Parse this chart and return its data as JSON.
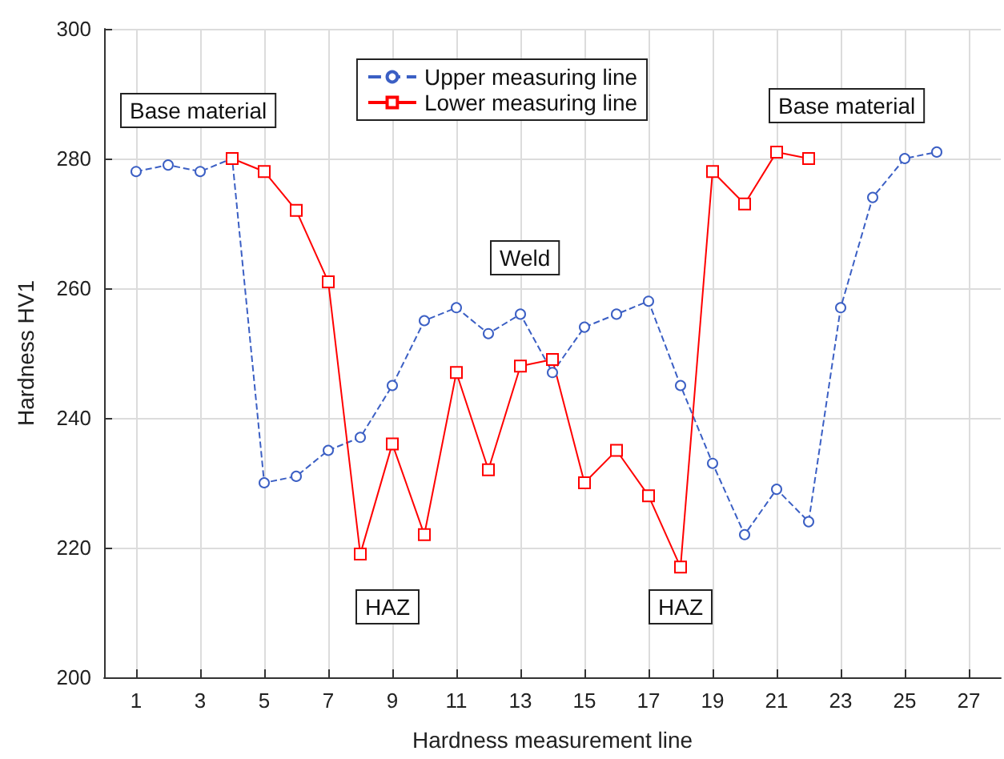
{
  "chart_data": {
    "type": "line",
    "xlabel": "Hardness measurement line",
    "ylabel": "Hardness HV1",
    "xlim": [
      0,
      28
    ],
    "xticks": [
      1,
      3,
      5,
      7,
      9,
      11,
      13,
      15,
      17,
      19,
      21,
      23,
      25,
      27
    ],
    "ylim": [
      200,
      300
    ],
    "yticks": [
      200,
      220,
      240,
      260,
      280,
      300
    ],
    "grid": true,
    "legend": "top",
    "annotations": [
      "Base material",
      "Base material",
      "Weld",
      "HAZ",
      "HAZ"
    ],
    "series": [
      {
        "name": "Upper measuring line",
        "color": "#3b5fc4",
        "marker": "circle",
        "line_style": "dashed",
        "x": [
          1,
          2,
          3,
          4,
          5,
          6,
          7,
          8,
          9,
          10,
          11,
          12,
          13,
          14,
          15,
          16,
          17,
          18,
          19,
          20,
          21,
          22,
          23,
          24,
          25,
          26
        ],
        "values": [
          278,
          279,
          278,
          280,
          230,
          231,
          235,
          237,
          245,
          255,
          257,
          253,
          256,
          247,
          254,
          256,
          258,
          245,
          233,
          222,
          229,
          224,
          257,
          274,
          280,
          281
        ]
      },
      {
        "name": "Lower measuring line",
        "color": "#ff0000",
        "marker": "square",
        "line_style": "solid",
        "x": [
          4,
          5,
          6,
          7,
          8,
          9,
          10,
          11,
          12,
          13,
          14,
          15,
          16,
          17,
          18,
          19,
          20,
          21,
          22
        ],
        "values": [
          280,
          278,
          272,
          261,
          219,
          236,
          222,
          247,
          232,
          248,
          249,
          230,
          235,
          228,
          217,
          278,
          273,
          281,
          280
        ]
      }
    ]
  }
}
